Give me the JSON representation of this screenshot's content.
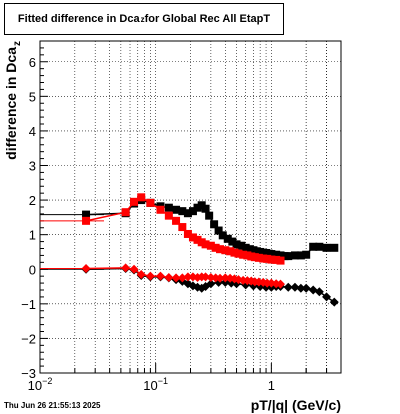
{
  "title": {
    "prefix": "Fitted difference in Dca",
    "sub": "z",
    "suffix": " for Global Rec All EtapT"
  },
  "footer": "Thu Jun 26 21:55:13 2025",
  "chart_data": {
    "type": "scatter",
    "title": "Fitted difference in Dca_z for Global Rec All EtapT",
    "xlabel": "pT/|q| (GeV/c)",
    "ylabel": "difference in Dca_z",
    "xscale": "log",
    "xlim": [
      0.01,
      4
    ],
    "ylim": [
      -3,
      6.6
    ],
    "grid": true,
    "x_ticks": [
      {
        "value": 0.01,
        "base": "10",
        "exp": "−2"
      },
      {
        "value": 0.1,
        "base": "10",
        "exp": "−1"
      },
      {
        "value": 1,
        "base": "1",
        "exp": ""
      }
    ],
    "y_ticks": [
      -3,
      -2,
      -1,
      0,
      1,
      2,
      3,
      4,
      5,
      6
    ],
    "colors": {
      "black_series": "#000000",
      "red_series": "#ff0000"
    },
    "series": [
      {
        "color": "#000000",
        "marker": "square",
        "x": [
          0.025,
          0.055,
          0.065,
          0.075,
          0.09,
          0.11,
          0.13,
          0.15,
          0.17,
          0.19,
          0.21,
          0.23,
          0.25,
          0.27,
          0.29,
          0.32,
          0.35,
          0.38,
          0.42,
          0.46,
          0.5,
          0.55,
          0.6,
          0.65,
          0.7,
          0.75,
          0.8,
          0.85,
          0.9,
          0.95,
          1.0,
          1.1,
          1.2,
          1.3,
          1.4,
          1.6,
          1.8,
          2.0,
          2.3,
          2.6,
          3.0,
          3.5
        ],
        "y": [
          1.58,
          1.62,
          1.9,
          2.0,
          1.92,
          1.82,
          1.78,
          1.72,
          1.68,
          1.62,
          1.68,
          1.78,
          1.85,
          1.75,
          1.55,
          1.3,
          1.12,
          0.98,
          0.88,
          0.8,
          0.72,
          0.68,
          0.62,
          0.58,
          0.55,
          0.52,
          0.5,
          0.48,
          0.47,
          0.45,
          0.44,
          0.42,
          0.4,
          0.38,
          0.38,
          0.4,
          0.4,
          0.42,
          0.65,
          0.65,
          0.62,
          0.62
        ]
      },
      {
        "color": "#ff0000",
        "marker": "square",
        "x": [
          0.025,
          0.055,
          0.065,
          0.075,
          0.09,
          0.11,
          0.13,
          0.15,
          0.17,
          0.19,
          0.21,
          0.23,
          0.25,
          0.27,
          0.3,
          0.33,
          0.36,
          0.4,
          0.44,
          0.48,
          0.52,
          0.57,
          0.62,
          0.67,
          0.72,
          0.78,
          0.85,
          0.92,
          1.0,
          1.1,
          1.2
        ],
        "y": [
          1.4,
          1.65,
          1.95,
          2.08,
          1.92,
          1.72,
          1.55,
          1.4,
          1.22,
          1.02,
          0.92,
          0.85,
          0.78,
          0.72,
          0.68,
          0.62,
          0.58,
          0.55,
          0.52,
          0.48,
          0.45,
          0.42,
          0.4,
          0.37,
          0.35,
          0.33,
          0.31,
          0.3,
          0.28,
          0.27,
          0.25
        ]
      },
      {
        "color": "#000000",
        "marker": "diamond",
        "x": [
          0.025,
          0.055,
          0.065,
          0.075,
          0.09,
          0.11,
          0.13,
          0.15,
          0.17,
          0.19,
          0.21,
          0.23,
          0.25,
          0.27,
          0.3,
          0.35,
          0.4,
          0.45,
          0.5,
          0.6,
          0.7,
          0.8,
          0.9,
          1.0,
          1.1,
          1.2,
          1.4,
          1.6,
          1.8,
          2.0,
          2.3,
          2.6,
          3.0,
          3.5
        ],
        "y": [
          0.0,
          0.02,
          -0.02,
          -0.18,
          -0.22,
          -0.22,
          -0.25,
          -0.3,
          -0.35,
          -0.42,
          -0.48,
          -0.52,
          -0.55,
          -0.5,
          -0.42,
          -0.38,
          -0.38,
          -0.4,
          -0.42,
          -0.45,
          -0.48,
          -0.5,
          -0.52,
          -0.52,
          -0.5,
          -0.5,
          -0.52,
          -0.52,
          -0.55,
          -0.55,
          -0.6,
          -0.65,
          -0.8,
          -0.95
        ]
      },
      {
        "color": "#ff0000",
        "marker": "diamond",
        "x": [
          0.025,
          0.055,
          0.065,
          0.075,
          0.09,
          0.11,
          0.13,
          0.15,
          0.17,
          0.19,
          0.21,
          0.23,
          0.25,
          0.27,
          0.3,
          0.33,
          0.36,
          0.4,
          0.44,
          0.48,
          0.52,
          0.57,
          0.62,
          0.67,
          0.72,
          0.78,
          0.85,
          0.92,
          1.0,
          1.1,
          1.2
        ],
        "y": [
          0.02,
          0.04,
          0.0,
          -0.15,
          -0.2,
          -0.2,
          -0.24,
          -0.25,
          -0.25,
          -0.22,
          -0.22,
          -0.24,
          -0.22,
          -0.22,
          -0.24,
          -0.25,
          -0.26,
          -0.25,
          -0.26,
          -0.28,
          -0.3,
          -0.32,
          -0.33,
          -0.34,
          -0.36,
          -0.37,
          -0.38,
          -0.4,
          -0.4,
          -0.42,
          -0.43
        ]
      }
    ]
  }
}
